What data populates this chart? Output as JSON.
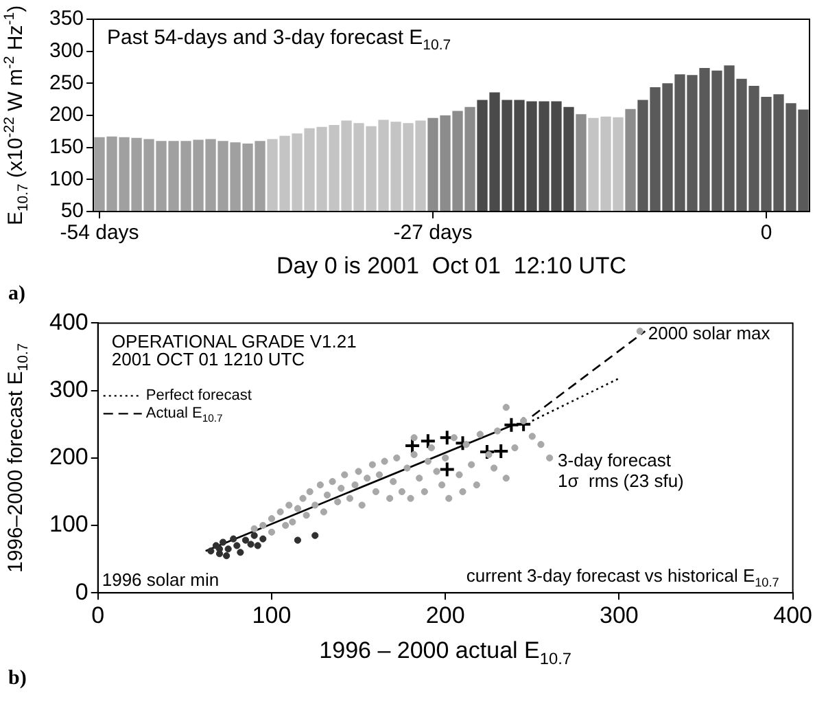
{
  "chart_data": [
    {
      "type": "bar",
      "title": "Past 54-days and 3-day forecast E$_{10.7}$",
      "xlabel": "Day 0 is 2001  Oct 01  12:10 UTC",
      "ylabel": "E$_{10.7}$ (x10$^{-22}$ W m$^{-2}$ Hz$^{-1}$)",
      "x": [
        -54,
        -53,
        -52,
        -51,
        -50,
        -49,
        -48,
        -47,
        -46,
        -45,
        -44,
        -43,
        -42,
        -41,
        -40,
        -39,
        -38,
        -37,
        -36,
        -35,
        -34,
        -33,
        -32,
        -31,
        -30,
        -29,
        -28,
        -27,
        -26,
        -25,
        -24,
        -23,
        -22,
        -21,
        -20,
        -19,
        -18,
        -17,
        -16,
        -15,
        -14,
        -13,
        -12,
        -11,
        -10,
        -9,
        -8,
        -7,
        -6,
        -5,
        -4,
        -3,
        -2,
        -1,
        0,
        1,
        2,
        3
      ],
      "values": [
        166,
        167,
        166,
        165,
        163,
        160,
        160,
        160,
        162,
        163,
        160,
        158,
        156,
        160,
        163,
        168,
        172,
        180,
        182,
        185,
        192,
        188,
        183,
        193,
        190,
        188,
        192,
        196,
        200,
        207,
        213,
        224,
        236,
        224,
        224,
        222,
        222,
        222,
        213,
        202,
        196,
        198,
        197,
        210,
        224,
        244,
        250,
        264,
        263,
        274,
        270,
        278,
        257,
        246,
        229,
        233,
        219,
        209
      ],
      "colors": [
        "#a0a0a0",
        "#a0a0a0",
        "#a0a0a0",
        "#a0a0a0",
        "#a0a0a0",
        "#a0a0a0",
        "#a0a0a0",
        "#a0a0a0",
        "#a0a0a0",
        "#a0a0a0",
        "#a0a0a0",
        "#a0a0a0",
        "#a0a0a0",
        "#a0a0a0",
        "#c4c4c4",
        "#c4c4c4",
        "#c4c4c4",
        "#c4c4c4",
        "#c4c4c4",
        "#c4c4c4",
        "#c4c4c4",
        "#c4c4c4",
        "#c4c4c4",
        "#c4c4c4",
        "#c4c4c4",
        "#c4c4c4",
        "#c4c4c4",
        "#8c8c8c",
        "#8c8c8c",
        "#8c8c8c",
        "#8c8c8c",
        "#4a4a4a",
        "#4a4a4a",
        "#4a4a4a",
        "#4a4a4a",
        "#4a4a4a",
        "#4a4a4a",
        "#4a4a4a",
        "#4a4a4a",
        "#8c8c8c",
        "#c4c4c4",
        "#c4c4c4",
        "#c4c4c4",
        "#8c8c8c",
        "#5a5a5a",
        "#5a5a5a",
        "#5a5a5a",
        "#5a5a5a",
        "#5a5a5a",
        "#5a5a5a",
        "#5a5a5a",
        "#5a5a5a",
        "#5a5a5a",
        "#5a5a5a",
        "#5a5a5a",
        "#5a5a5a",
        "#5a5a5a",
        "#5a5a5a"
      ],
      "xlim": [
        -54.5,
        3.5
      ],
      "xticks": [
        {
          "value": -54,
          "label": "-54 days"
        },
        {
          "value": -27,
          "label": "-27 days"
        },
        0
      ],
      "ylim": [
        50,
        350
      ],
      "yticks": [
        50,
        100,
        150,
        200,
        250,
        300,
        350
      ],
      "grid": false,
      "annotations": [
        "a)"
      ]
    },
    {
      "type": "scatter",
      "title": "OPERATIONAL GRADE V1.21",
      "subtitle": "2001 OCT 01 1210 UTC",
      "xlabel": "1996 – 2000 actual E$_{10.7}$",
      "ylabel": "1996–2000 forecast E$_{10.7}$",
      "xlim": [
        0,
        400
      ],
      "xticks": [
        0,
        100,
        200,
        300,
        400
      ],
      "ylim": [
        0,
        400
      ],
      "yticks": [
        0,
        100,
        200,
        300,
        400
      ],
      "grid": false,
      "legend": "top left",
      "series": [
        {
          "type": "scatter",
          "color": "#a8a8a8",
          "marker": "circle",
          "x": [
            90,
            95,
            100,
            100,
            105,
            108,
            110,
            112,
            115,
            118,
            120,
            122,
            125,
            128,
            130,
            132,
            135,
            138,
            140,
            142,
            145,
            148,
            150,
            152,
            155,
            158,
            160,
            162,
            165,
            168,
            170,
            172,
            175,
            178,
            180,
            182,
            185,
            188,
            190,
            192,
            195,
            198,
            200,
            202,
            205,
            208,
            210,
            212,
            215,
            218,
            220,
            225,
            228,
            230,
            235,
            240,
            245,
            250,
            255,
            260,
            182,
            235,
            312
          ],
          "values": [
            95,
            100,
            110,
            90,
            120,
            100,
            130,
            105,
            125,
            140,
            115,
            150,
            130,
            160,
            120,
            145,
            165,
            135,
            155,
            175,
            140,
            160,
            180,
            130,
            170,
            190,
            150,
            175,
            195,
            140,
            165,
            200,
            150,
            185,
            140,
            205,
            170,
            150,
            195,
            215,
            180,
            160,
            200,
            140,
            230,
            175,
            150,
            220,
            190,
            160,
            235,
            205,
            185,
            240,
            170,
            215,
            255,
            232,
            220,
            200,
            230,
            275,
            388
          ]
        },
        {
          "type": "scatter",
          "color": "#303030",
          "marker": "circle",
          "x": [
            65,
            68,
            70,
            72,
            75,
            78,
            80,
            82,
            85,
            88,
            90,
            70,
            74,
            92,
            95,
            115,
            125
          ],
          "values": [
            62,
            70,
            58,
            75,
            65,
            80,
            70,
            60,
            78,
            72,
            85,
            65,
            55,
            70,
            80,
            78,
            85
          ]
        },
        {
          "type": "scatter",
          "color": "#000000",
          "marker": "cross",
          "x": [
            181,
            190,
            201,
            210,
            224,
            238,
            245,
            201,
            232
          ],
          "values": [
            218,
            225,
            230,
            222,
            209,
            249,
            250,
            183,
            210
          ]
        },
        {
          "type": "line",
          "color": "#000000",
          "line_style": "solid",
          "x": [
            62,
            240
          ],
          "values": [
            62,
            250
          ]
        },
        {
          "type": "line",
          "name": "Perfect forecast",
          "color": "#000000",
          "line_style": "dotted",
          "x": [
            250,
            300
          ],
          "values": [
            255,
            318
          ]
        },
        {
          "type": "line",
          "name": "Actual E$_{10.7}$",
          "color": "#000000",
          "line_style": "dashed",
          "x": [
            250,
            315
          ],
          "values": [
            262,
            388
          ]
        }
      ],
      "annotations": [
        {
          "text": "1996 solar min",
          "x": 65,
          "y": 55
        },
        {
          "text": "2000 solar max",
          "x": 312,
          "y": 388
        },
        {
          "text": "3-day forecast\n1σ  rms (23 sfu)",
          "x": 260,
          "y": 200
        },
        "current 3-day forecast vs historical E$_{10.7}$",
        "b)"
      ]
    }
  ]
}
